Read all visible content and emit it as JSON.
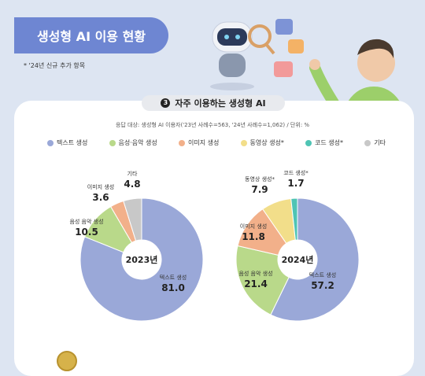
{
  "header": {
    "title": "생성형 AI 이용 현황",
    "note": "* '24년 신규 추가 항목"
  },
  "section": {
    "number": "3",
    "title": "자주 이용하는 생성형 AI"
  },
  "basis": "응답 대상: 생성형 AI 이용자('23년 사례수=563, '24년 사례수=1,062) / 단위: %",
  "legend": [
    {
      "label": "텍스트 생성",
      "color": "#9aa8d8"
    },
    {
      "label": "음성·음악 생성",
      "color": "#b9d98a"
    },
    {
      "label": "이미지 생성",
      "color": "#f2b08a"
    },
    {
      "label": "동영상 생성*",
      "color": "#f2de8a"
    },
    {
      "label": "코드 생성*",
      "color": "#4fc4b4"
    },
    {
      "label": "기타",
      "color": "#c8c8c8"
    }
  ],
  "colors": {
    "background": "#dde5f2",
    "banner": "#6e86d2",
    "text": "#9aa8d8",
    "voice": "#b9d98a",
    "image": "#f2b08a",
    "video": "#f2de8a",
    "code": "#4fc4b4",
    "other": "#c8c8c8"
  },
  "chart_data": [
    {
      "type": "pie",
      "title": "2023년",
      "categories": [
        "텍스트 생성",
        "음성·음악 생성",
        "이미지 생성",
        "기타"
      ],
      "category_labels": [
        "텍스트 생성",
        "음성 음악 생성",
        "이미지 생성",
        "기타"
      ],
      "values": [
        81.0,
        10.5,
        3.6,
        4.8
      ],
      "value_labels": [
        "81.0",
        "10.5",
        "3.6",
        "4.8"
      ],
      "unit": "%"
    },
    {
      "type": "pie",
      "title": "2024년",
      "categories": [
        "텍스트 생성",
        "음성·음악 생성",
        "이미지 생성",
        "동영상 생성*",
        "코드 생성*"
      ],
      "category_labels": [
        "텍스트 생성",
        "음성 음악 생성",
        "이미지 생성",
        "동영상 생성*",
        "코드 생성*"
      ],
      "values": [
        57.2,
        21.4,
        11.8,
        7.9,
        1.7
      ],
      "value_labels": [
        "57.2",
        "21.4",
        "11.8",
        "7.9",
        "1.7"
      ],
      "unit": "%"
    }
  ]
}
